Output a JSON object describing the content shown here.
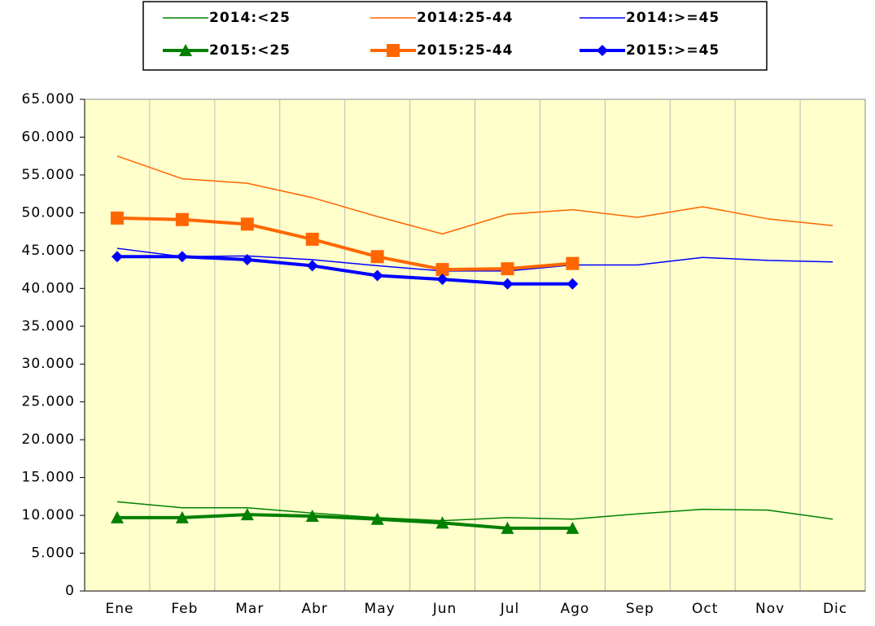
{
  "chart_data": {
    "type": "line",
    "categories": [
      "Ene",
      "Feb",
      "Mar",
      "Abr",
      "May",
      "Jun",
      "Jul",
      "Ago",
      "Sep",
      "Oct",
      "Nov",
      "Dic"
    ],
    "ylim": [
      0,
      65000
    ],
    "yticks": [
      0,
      {
        "value": 5000,
        "label": "5.000"
      },
      {
        "value": 10000,
        "label": "10.000"
      },
      {
        "value": 15000,
        "label": "15.000"
      },
      {
        "value": 20000,
        "label": "20.000"
      },
      {
        "value": 25000,
        "label": "25.000"
      },
      {
        "value": 30000,
        "label": "30.000"
      },
      {
        "value": 35000,
        "label": "35.000"
      },
      {
        "value": 40000,
        "label": "40.000"
      },
      {
        "value": 45000,
        "label": "45.000"
      },
      {
        "value": 50000,
        "label": "50.000"
      },
      {
        "value": 55000,
        "label": "55.000"
      },
      {
        "value": 60000,
        "label": "60.000"
      },
      {
        "value": 65000,
        "label": "65.000"
      }
    ],
    "plot_background": "#ffffcc",
    "grid": "x",
    "legend": "top",
    "series": [
      {
        "name": "2014:<25",
        "color": "#008000",
        "width": 1.5,
        "marker": "none",
        "values": [
          11800,
          11000,
          11000,
          10300,
          9700,
          9300,
          9700,
          9500,
          10200,
          10800,
          10700,
          9500
        ]
      },
      {
        "name": "2014:25-44",
        "color": "#ff6600",
        "width": 1.5,
        "marker": "none",
        "values": [
          57500,
          54500,
          53900,
          52000,
          49500,
          47200,
          49800,
          50400,
          49400,
          50800,
          49200,
          48300
        ]
      },
      {
        "name": "2014:>=45",
        "color": "#0000ff",
        "width": 1.5,
        "marker": "none",
        "values": [
          45300,
          44200,
          44300,
          43800,
          43000,
          42300,
          42300,
          43100,
          43100,
          44100,
          43700,
          43500
        ]
      },
      {
        "name": "2015:<25",
        "color": "#008000",
        "width": 4,
        "marker": "triangle",
        "values": [
          9700,
          9700,
          10100,
          9900,
          9500,
          9000,
          8300,
          8300,
          null,
          null,
          null,
          null
        ]
      },
      {
        "name": "2015:25-44",
        "color": "#ff6600",
        "width": 4,
        "marker": "square",
        "values": [
          49300,
          49100,
          48500,
          46500,
          44200,
          42500,
          42600,
          43300,
          null,
          null,
          null,
          null
        ]
      },
      {
        "name": "2015:>=45",
        "color": "#0000ff",
        "width": 4,
        "marker": "diamond",
        "values": [
          44200,
          44200,
          43800,
          43000,
          41700,
          41200,
          40600,
          40600,
          null,
          null,
          null,
          null
        ]
      }
    ]
  }
}
